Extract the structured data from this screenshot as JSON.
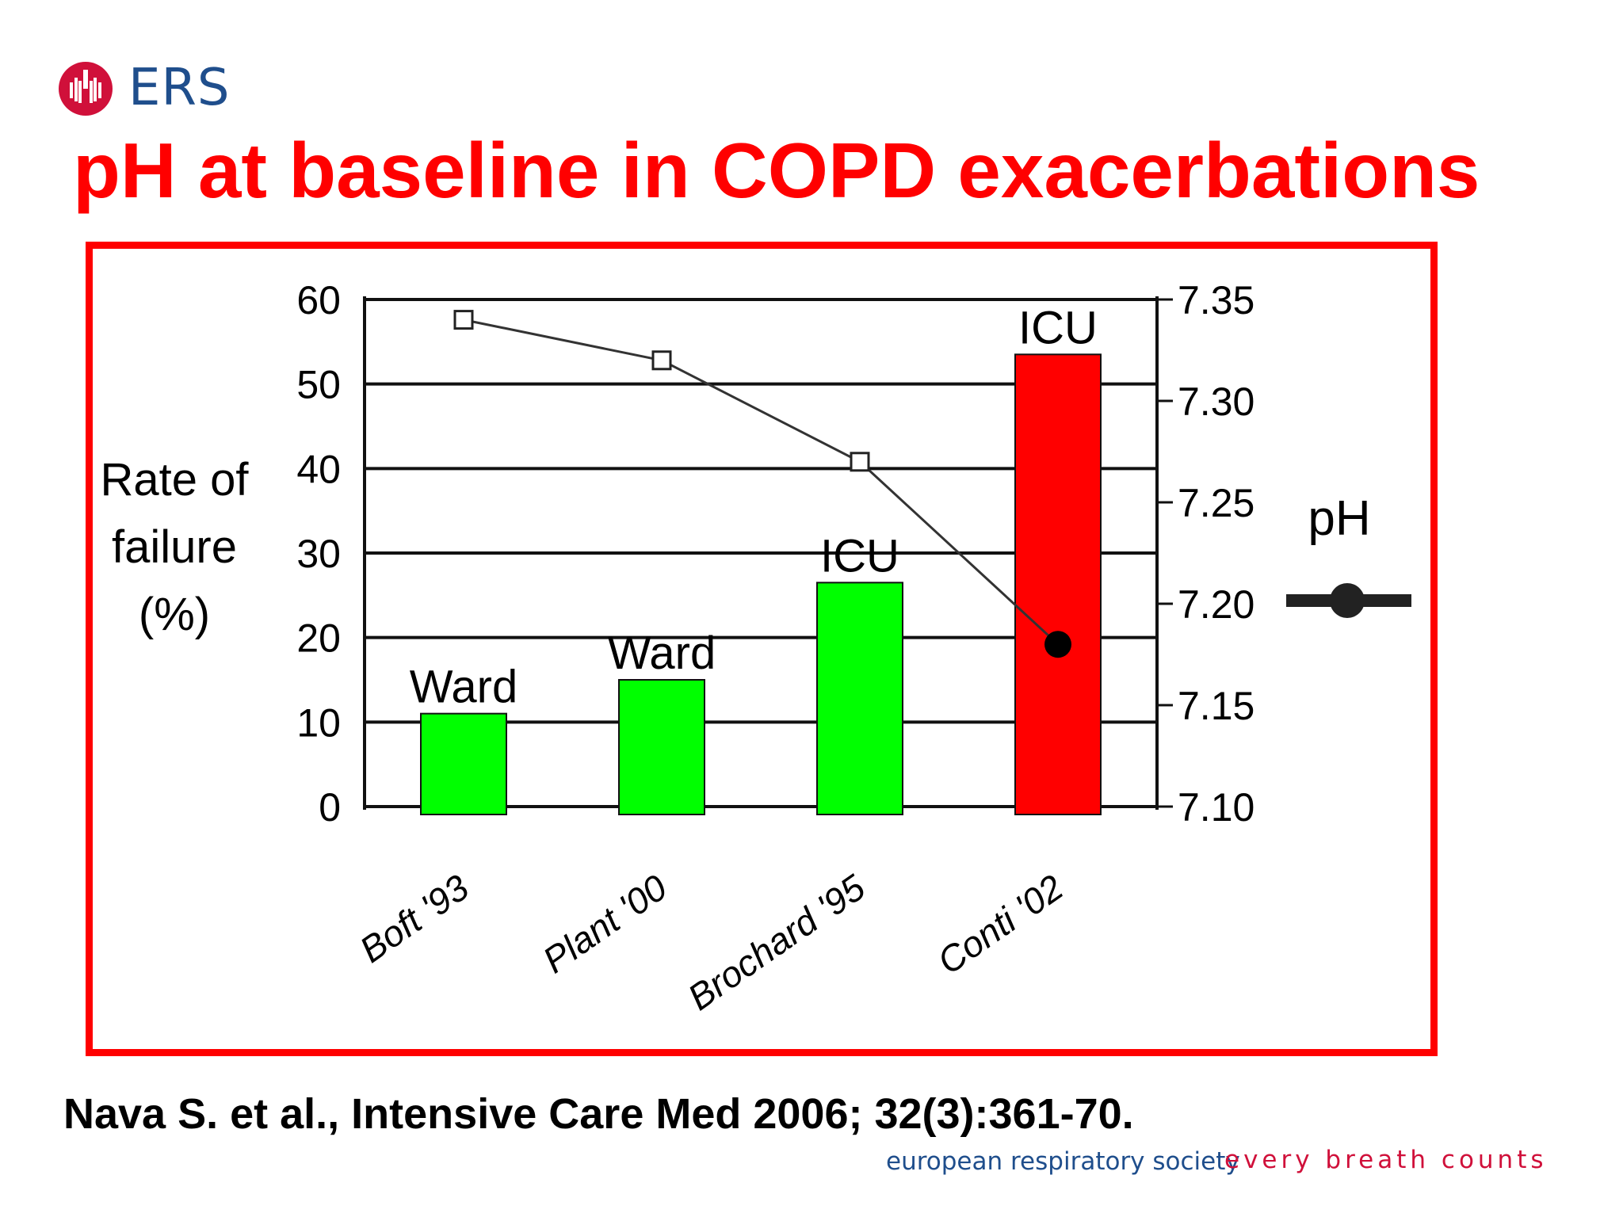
{
  "logo": {
    "text": "ERS",
    "icon": "lungs-logo-icon",
    "color": "#d0103a"
  },
  "title": "pH at baseline in COPD exacerbations",
  "citation": "Nava S. et al., Intensive Care Med 2006; 32(3):361-70.",
  "footer": {
    "org": "european respiratory society",
    "tagline": "every breath counts"
  },
  "chart_data": {
    "type": "bar",
    "categories": [
      "Boft '93",
      "Plant '00",
      "Brochard '95",
      "Conti '02"
    ],
    "ylabel": "Rate of failure (%)",
    "y2label": "pH",
    "ylim": [
      0,
      60
    ],
    "y2lim": [
      7.1,
      7.35
    ],
    "yticks": [
      "0",
      "10",
      "20",
      "30",
      "40",
      "50",
      "60"
    ],
    "y2ticks": [
      "7.10",
      "7.15",
      "7.20",
      "7.25",
      "7.30",
      "7.35"
    ],
    "series": [
      {
        "values": [
          11,
          15,
          26.5,
          53.5
        ],
        "colors": [
          "#00ff00",
          "#00ff00",
          "#00ff00",
          "#ff0000"
        ]
      },
      {
        "name": "pH",
        "axis": "right",
        "values": [
          7.34,
          7.32,
          7.27,
          7.18
        ]
      }
    ],
    "bar_labels": [
      "Ward",
      "Ward",
      "ICU",
      "ICU"
    ],
    "grid": true
  }
}
